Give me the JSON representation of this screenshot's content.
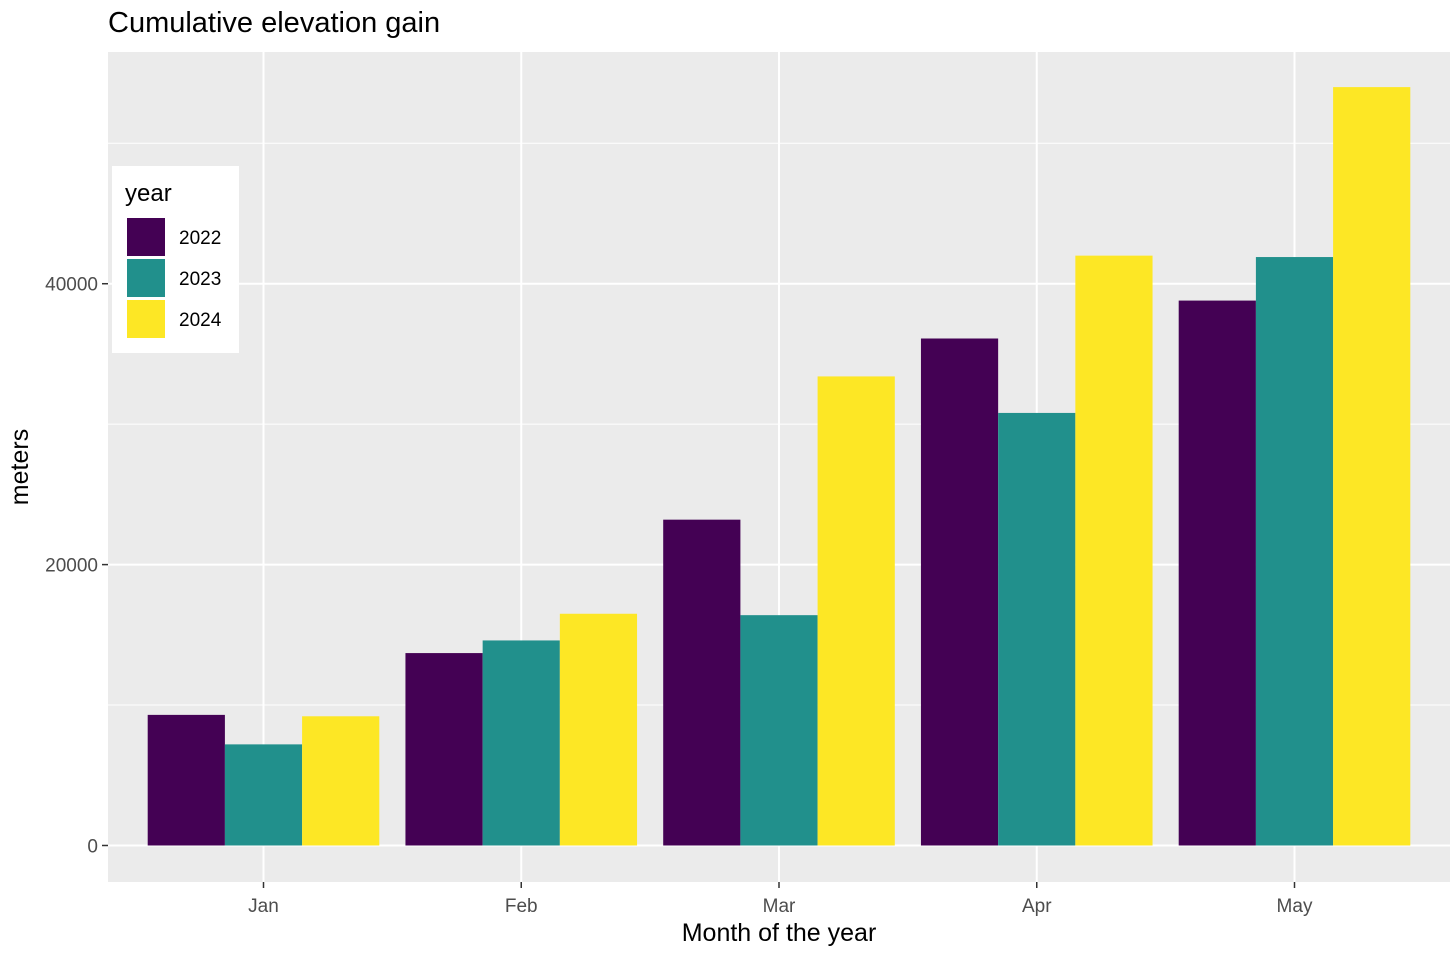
{
  "chart_data": {
    "type": "bar",
    "title": "Cumulative elevation gain",
    "xlabel": "Month of the year",
    "ylabel": "meters",
    "categories": [
      "Jan",
      "Feb",
      "Mar",
      "Apr",
      "May"
    ],
    "series": [
      {
        "name": "2022",
        "color": "#440154",
        "values": [
          9300,
          13700,
          23200,
          36100,
          38800
        ]
      },
      {
        "name": "2023",
        "color": "#21908C",
        "values": [
          7200,
          14600,
          16400,
          30800,
          41900
        ]
      },
      {
        "name": "2024",
        "color": "#FDE725",
        "values": [
          9200,
          16500,
          33400,
          42000,
          54000
        ]
      }
    ],
    "ylim": [
      -2600,
      56500
    ],
    "yticks": [
      0,
      20000,
      40000
    ],
    "yticklabels": [
      "0",
      "20000",
      "40000"
    ],
    "grid": true,
    "panel_background": "#EBEBEB",
    "legend": {
      "title": "year",
      "position": "top-left",
      "entries": [
        "2022",
        "2023",
        "2024"
      ]
    }
  }
}
